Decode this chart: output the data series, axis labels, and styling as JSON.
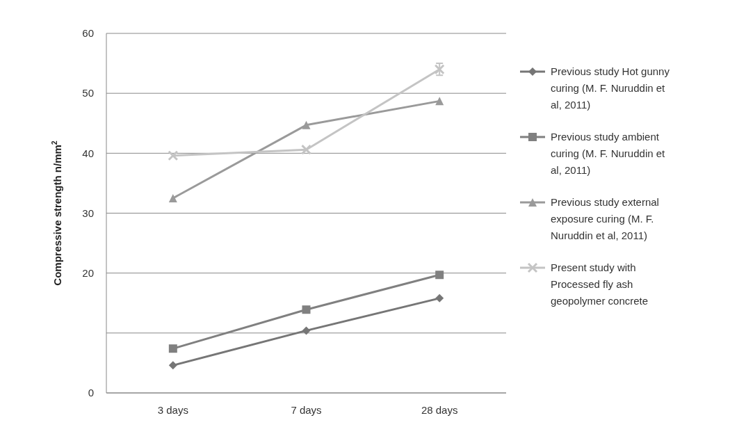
{
  "chart_data": {
    "type": "line",
    "ylabel": "Compressive strength n/mm$^{2}$",
    "categories": [
      "3 days",
      "7 days",
      "28 days"
    ],
    "ylim": [
      0,
      60
    ],
    "yticks": [
      0,
      {
        "value": 10,
        "label": null
      },
      20,
      30,
      40,
      50,
      60
    ],
    "grid": "y",
    "legend": "right",
    "line_style": "solid",
    "series": [
      {
        "name": "Previous study Hot gunny curing (M. F. Nuruddin et al, 2011)",
        "color": "#767676",
        "marker": "diamond",
        "values": [
          4.6,
          10.4,
          15.8
        ]
      },
      {
        "name": "Previous study ambient curing (M. F. Nuruddin et al, 2011)",
        "color": "#808080",
        "marker": "square",
        "values": [
          7.4,
          13.9,
          19.7
        ]
      },
      {
        "name": "Previous study external exposure curing (M. F. Nuruddin et al, 2011)",
        "color": "#9a9a9a",
        "marker": "triangle",
        "values": [
          32.5,
          44.7,
          48.7
        ]
      },
      {
        "name": "Present study with Processed fly ash geopolymer concrete",
        "color": "#c4c4c4",
        "marker": "cross",
        "values": [
          39.6,
          40.6,
          54.0
        ],
        "errors": [
          null,
          null,
          1.0
        ]
      }
    ]
  }
}
